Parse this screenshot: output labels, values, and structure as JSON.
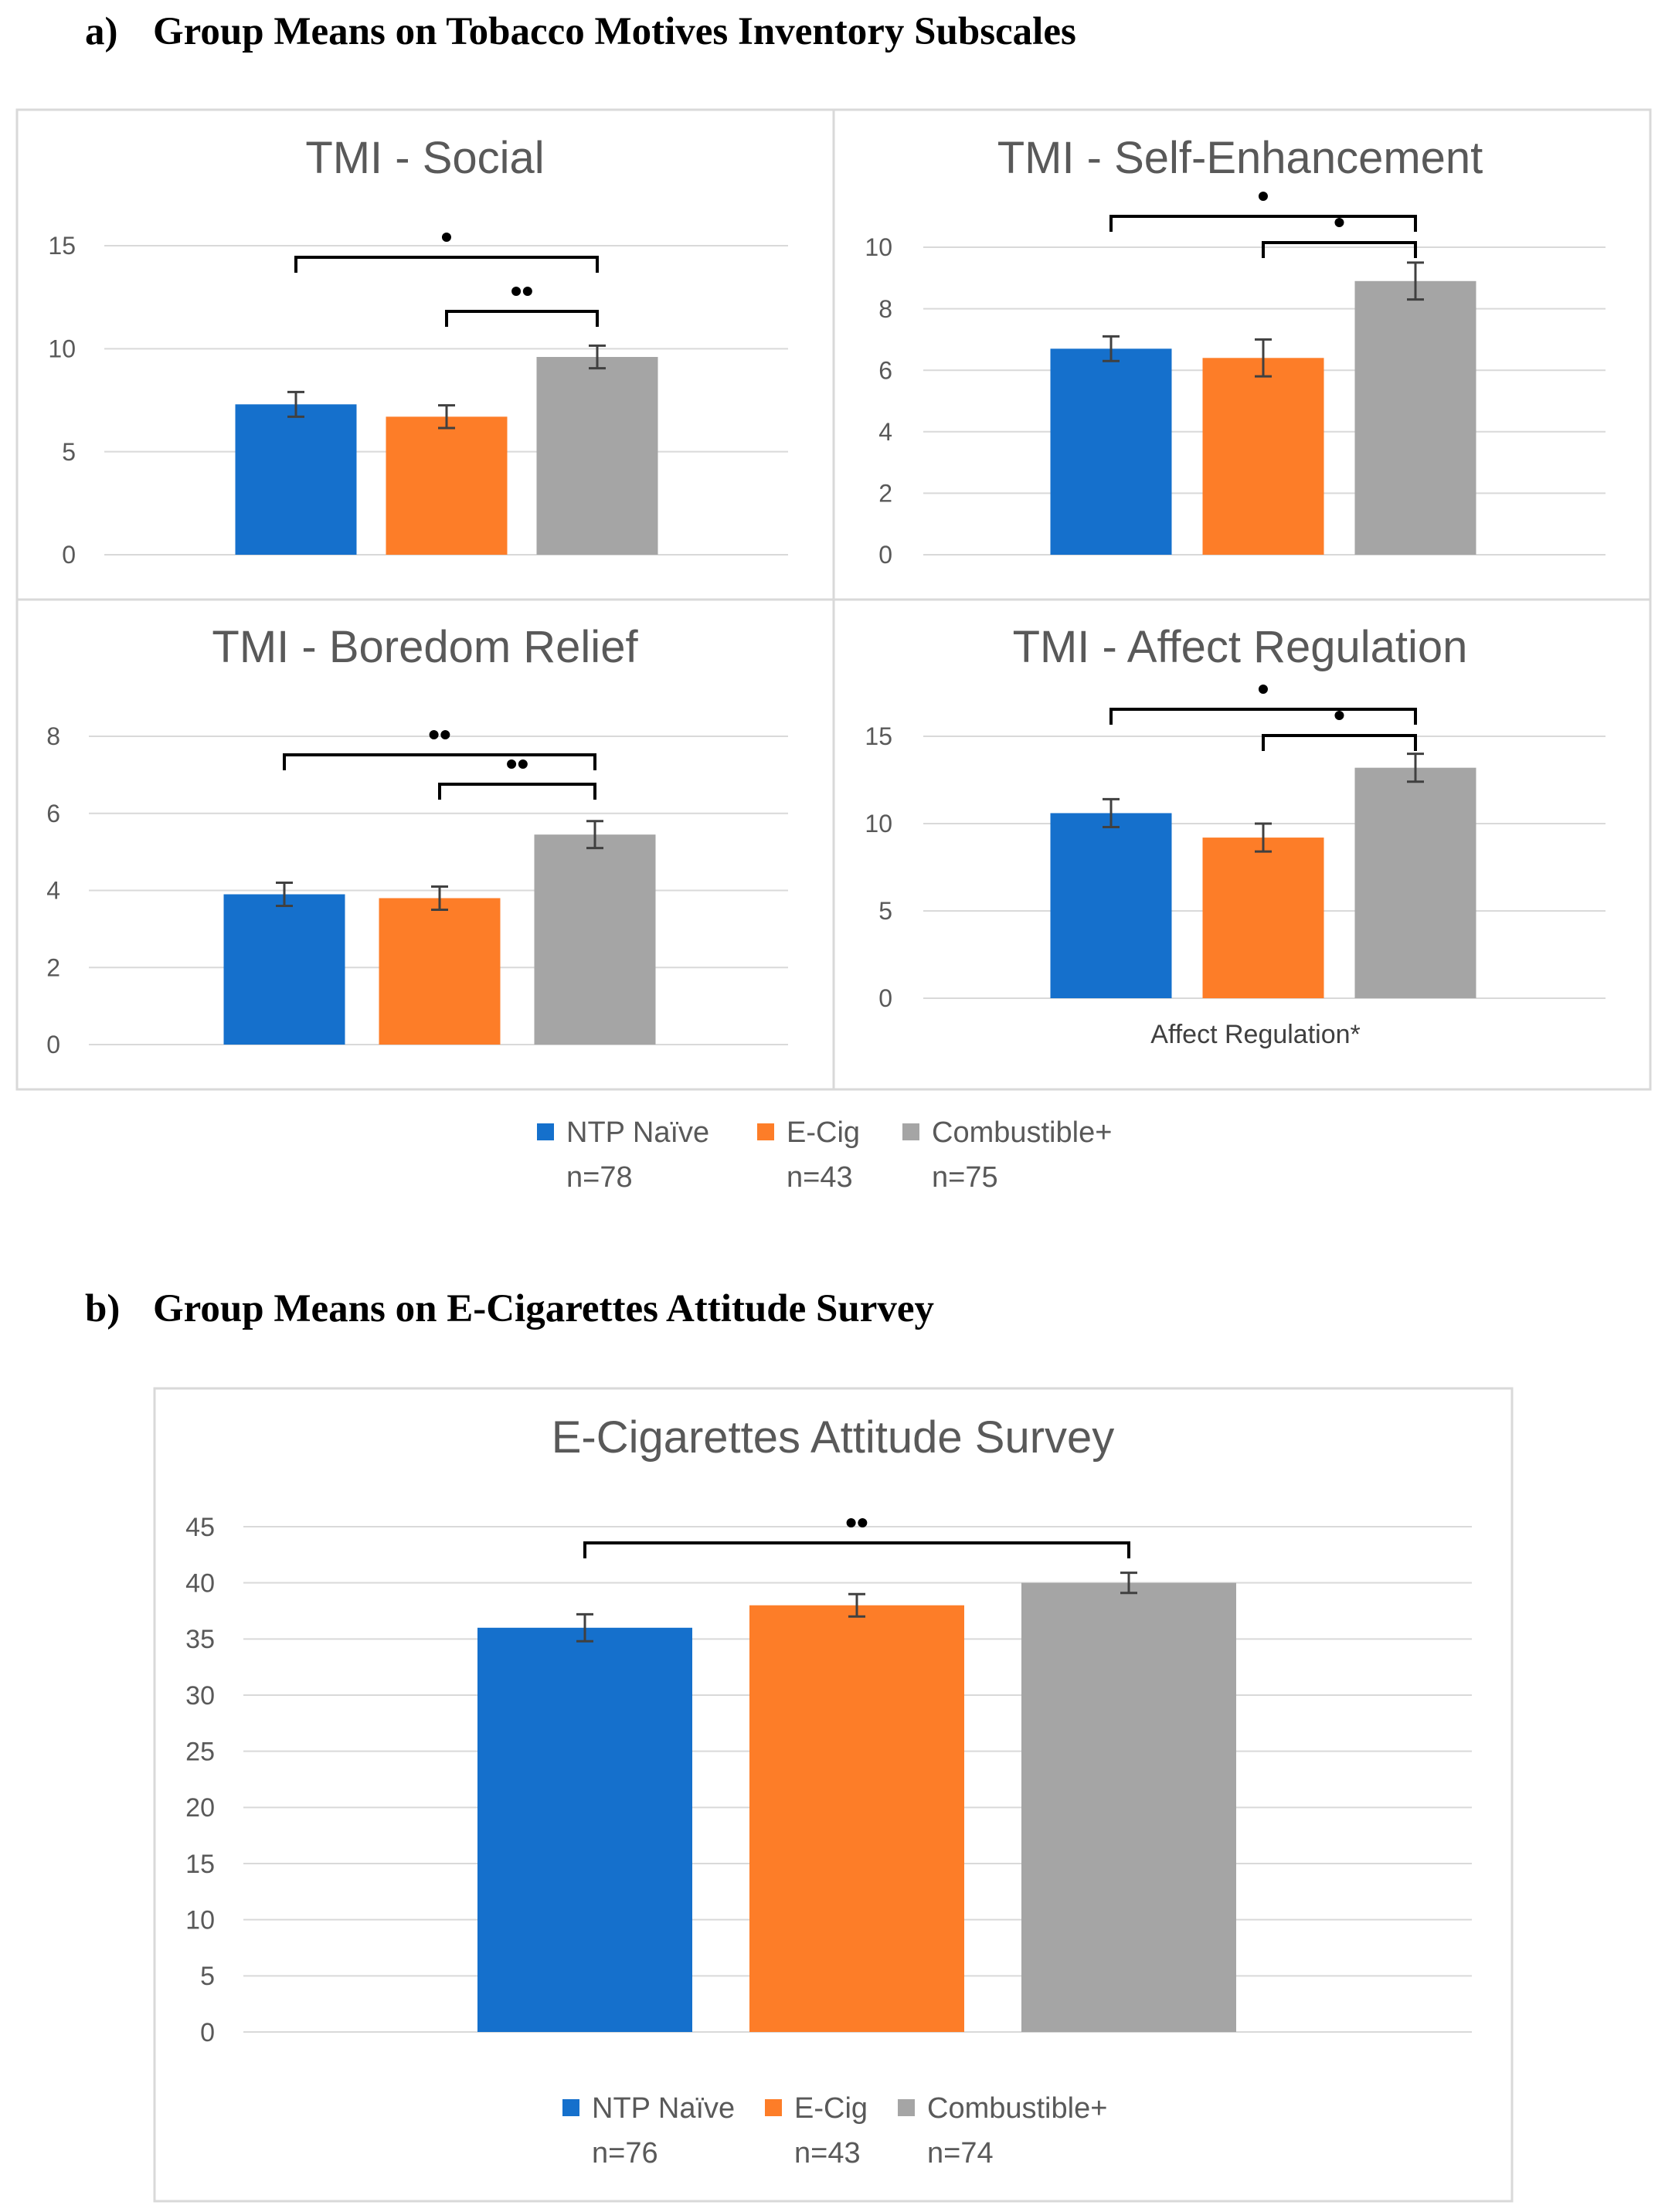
{
  "section_a": {
    "label": "a)",
    "title": "Group Means on Tobacco Motives Inventory Subscales"
  },
  "section_b": {
    "label": "b)",
    "title": "Group Means on E-Cigarettes Attitude Survey"
  },
  "colors": {
    "NTP Naïve": "#1570cc",
    "E-Cig": "#fd7d28",
    "Combustible+": "#a5a5a5",
    "grid": "#d9d9d9",
    "axis_text": "#595959",
    "title_text": "#595959",
    "error": "#404040"
  },
  "legend_a": [
    {
      "name": "NTP Naïve",
      "n": "n=78"
    },
    {
      "name": "E-Cig",
      "n": "n=43"
    },
    {
      "name": "Combustible+",
      "n": "n=75"
    }
  ],
  "legend_b": [
    {
      "name": "NTP Naïve",
      "n": "n=76"
    },
    {
      "name": "E-Cig",
      "n": "n=43"
    },
    {
      "name": "Combustible+",
      "n": "n=74"
    }
  ],
  "chart_data": [
    {
      "type": "bar",
      "title": "TMI - Social",
      "categories": [
        "NTP Naïve",
        "E-Cig",
        "Combustible+"
      ],
      "values": [
        7.3,
        6.7,
        9.6
      ],
      "errors": [
        0.6,
        0.55,
        0.55
      ],
      "ylim": [
        0,
        15
      ],
      "yticks": [
        0,
        5,
        10,
        15
      ],
      "xlabel": "",
      "significance": [
        {
          "from": 0,
          "to": 2,
          "label": "•"
        },
        {
          "from": 1,
          "to": 2,
          "label": "••"
        }
      ]
    },
    {
      "type": "bar",
      "title": "TMI - Self-Enhancement",
      "categories": [
        "NTP Naïve",
        "E-Cig",
        "Combustible+"
      ],
      "values": [
        6.7,
        6.4,
        8.9
      ],
      "errors": [
        0.4,
        0.6,
        0.6
      ],
      "ylim": [
        0,
        10
      ],
      "yticks": [
        0,
        2,
        4,
        6,
        8,
        10
      ],
      "xlabel": "",
      "significance": [
        {
          "from": 0,
          "to": 2,
          "label": "•"
        },
        {
          "from": 1,
          "to": 2,
          "label": "•"
        }
      ]
    },
    {
      "type": "bar",
      "title": "TMI - Boredom Relief",
      "categories": [
        "NTP Naïve",
        "E-Cig",
        "Combustible+"
      ],
      "values": [
        3.9,
        3.8,
        5.45
      ],
      "errors": [
        0.3,
        0.3,
        0.35
      ],
      "ylim": [
        0,
        8
      ],
      "yticks": [
        0,
        2,
        4,
        6,
        8
      ],
      "xlabel": "",
      "significance": [
        {
          "from": 0,
          "to": 2,
          "label": "••"
        },
        {
          "from": 1,
          "to": 2,
          "label": "••"
        }
      ]
    },
    {
      "type": "bar",
      "title": "TMI - Affect Regulation",
      "categories": [
        "NTP Naïve",
        "E-Cig",
        "Combustible+"
      ],
      "values": [
        10.6,
        9.2,
        13.2
      ],
      "errors": [
        0.8,
        0.8,
        0.8
      ],
      "ylim": [
        0,
        15
      ],
      "yticks": [
        0,
        5,
        10,
        15
      ],
      "xlabel": "Affect Regulation*",
      "significance": [
        {
          "from": 0,
          "to": 2,
          "label": "•"
        },
        {
          "from": 1,
          "to": 2,
          "label": "•"
        }
      ]
    },
    {
      "type": "bar",
      "title": "E-Cigarettes Attitude Survey",
      "categories": [
        "NTP Naïve",
        "E-Cig",
        "Combustible+"
      ],
      "values": [
        36,
        38,
        40
      ],
      "errors": [
        1.2,
        1.0,
        0.9
      ],
      "ylim": [
        0,
        45
      ],
      "yticks": [
        0,
        5,
        10,
        15,
        20,
        25,
        30,
        35,
        40,
        45
      ],
      "xlabel": "",
      "significance": [
        {
          "from": 0,
          "to": 2,
          "label": "••"
        }
      ]
    }
  ]
}
